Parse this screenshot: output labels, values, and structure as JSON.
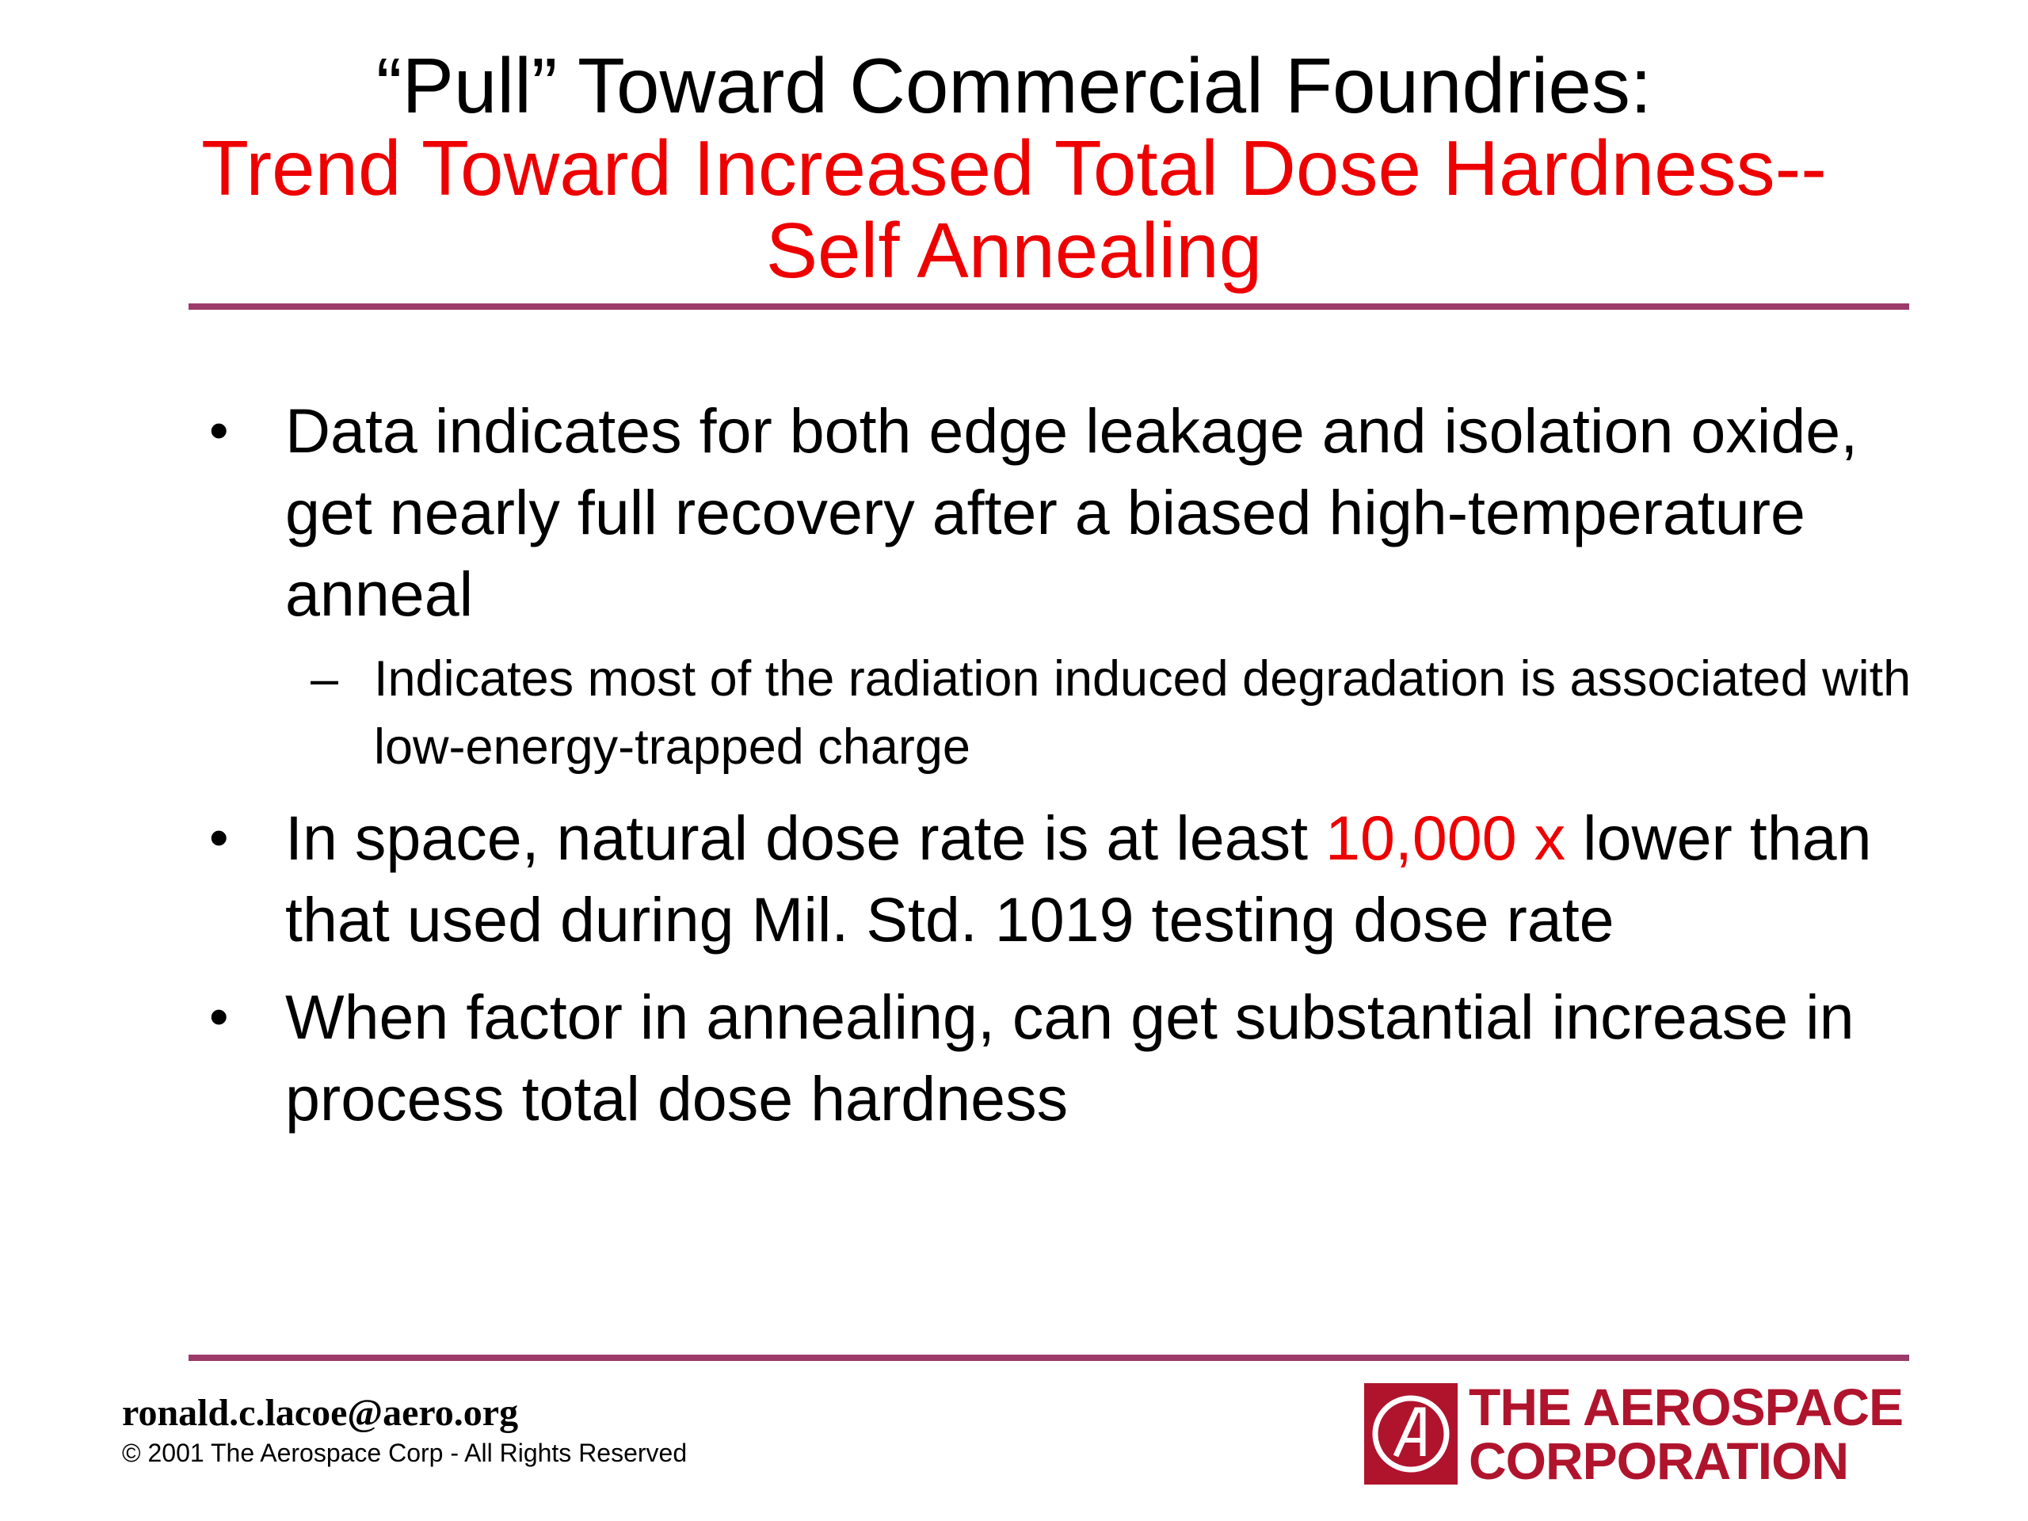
{
  "title": {
    "line1": "“Pull” Toward Commercial Foundries:",
    "line2": "Trend Toward Increased Total Dose Hardness--",
    "line3": "Self Annealing"
  },
  "bullets": [
    {
      "marker": "•",
      "text": "Data indicates for both edge leakage and isolation oxide, get nearly full recovery after a biased high-temperature anneal",
      "sub": {
        "marker": "–",
        "text": "Indicates most of the radiation induced degradation is associated with low-energy-trapped charge"
      }
    },
    {
      "marker": "•",
      "text_before": "In space, natural dose rate is at least ",
      "highlight": "10,000 x",
      "text_after": " lower than that used during Mil. Std. 1019 testing dose rate"
    },
    {
      "marker": "•",
      "text": "When factor in annealing, can get substantial increase in process total dose hardness"
    }
  ],
  "footer": {
    "email": "ronald.c.lacoe@aero.org",
    "copyright": "© 2001 The Aerospace Corp - All Rights Reserved"
  },
  "logo": {
    "line1": "THE AEROSPACE",
    "line2": "CORPORATION",
    "mark_letter": "A",
    "brand_color": "#b0142d"
  },
  "colors": {
    "title_primary": "#000000",
    "title_accent": "#ee0000",
    "rule": "#9c3b6a",
    "highlight": "#ee0000"
  }
}
